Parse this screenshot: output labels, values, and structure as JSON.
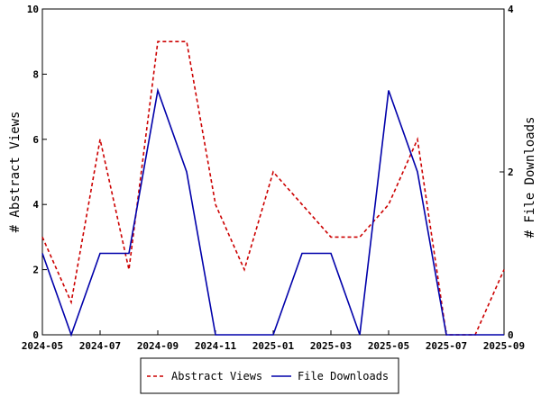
{
  "chart_data": {
    "type": "line",
    "ylabel": "# Abstract Views",
    "y2label": "# File Downloads",
    "x_ticks": [
      "2024-05",
      "2024-07",
      "2024-09",
      "2024-11",
      "2025-01",
      "2025-03",
      "2025-05",
      "2025-07",
      "2025-09"
    ],
    "x": [
      "2024-05",
      "2024-06",
      "2024-07",
      "2024-08",
      "2024-09",
      "2024-10",
      "2024-11",
      "2024-12",
      "2025-01",
      "2025-02",
      "2025-03",
      "2025-04",
      "2025-05",
      "2025-06",
      "2025-07",
      "2025-08",
      "2025-09"
    ],
    "ylim": [
      0,
      10
    ],
    "y_ticks": [
      0,
      2,
      4,
      6,
      8,
      10
    ],
    "y2lim": [
      0,
      4
    ],
    "y2_ticks": [
      0,
      2,
      4
    ],
    "legend_position": "bottom",
    "grid": false,
    "series": [
      {
        "name": "Abstract Views",
        "axis": "left",
        "color": "#cc0000",
        "style": "dashed",
        "values": [
          3,
          1,
          6,
          2,
          9,
          9,
          4,
          2,
          5,
          4,
          3,
          3,
          4,
          6,
          0,
          0,
          2
        ]
      },
      {
        "name": "File Downloads",
        "axis": "right",
        "color": "#0000aa",
        "style": "solid",
        "values": [
          1,
          0,
          1,
          1,
          3,
          2,
          0,
          0,
          0,
          1,
          1,
          0,
          3,
          2,
          0,
          0,
          0
        ]
      }
    ]
  }
}
